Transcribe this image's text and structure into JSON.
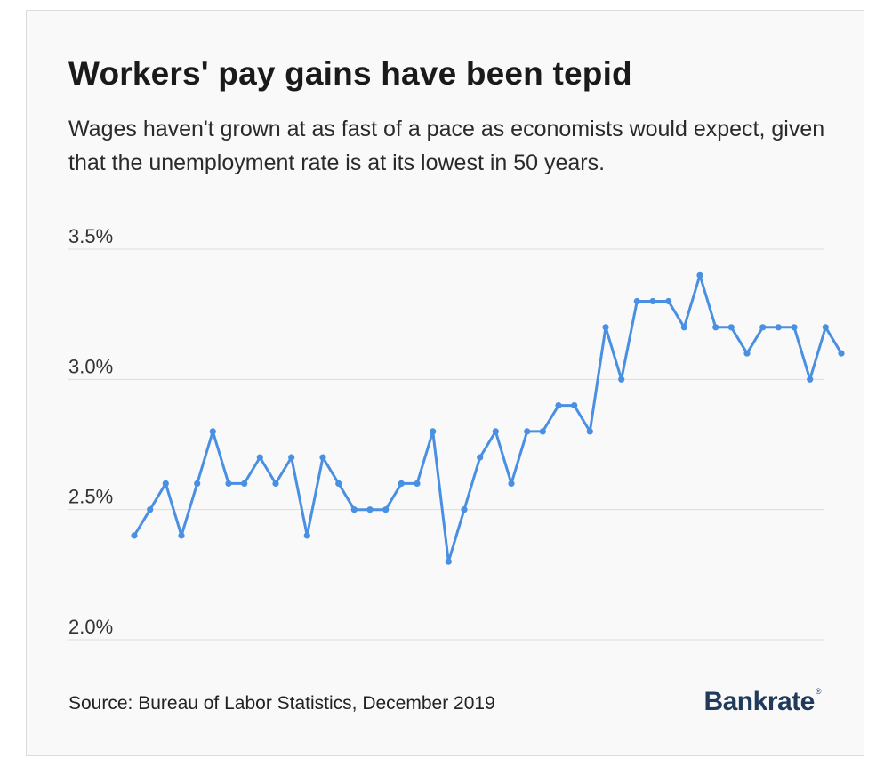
{
  "header": {
    "title": "Workers' pay gains have been tepid",
    "subtitle": "Wages haven't grown at as fast of a pace as economists would expect, given that the unemployment rate is at its lowest in 50 years."
  },
  "footer": {
    "source": "Source: Bureau of Labor Statistics, December 2019",
    "logo": "Bankrate"
  },
  "colors": {
    "line": "#4a90e2",
    "grid": "#dddddd",
    "logo": "#1f3a5a"
  },
  "chart_data": {
    "type": "line",
    "title": "Workers' pay gains have been tepid",
    "xlabel": "",
    "ylabel": "",
    "ylim": [
      2.0,
      3.5
    ],
    "yticks": [
      {
        "value": 3.5,
        "label": "3.5%"
      },
      {
        "value": 3.0,
        "label": "3.0%"
      },
      {
        "value": 2.5,
        "label": "2.5%"
      },
      {
        "value": 2.0,
        "label": "2.0%"
      }
    ],
    "grid": true,
    "series": [
      {
        "values": [
          2.4,
          2.5,
          2.6,
          2.4,
          2.6,
          2.8,
          2.6,
          2.6,
          2.7,
          2.6,
          2.7,
          2.4,
          2.7,
          2.6,
          2.5,
          2.5,
          2.5,
          2.6,
          2.6,
          2.8,
          2.3,
          2.5,
          2.7,
          2.8,
          2.6,
          2.8,
          2.8,
          2.9,
          2.9,
          2.8,
          3.2,
          3.0,
          3.3,
          3.3,
          3.3,
          3.2,
          3.4,
          3.2,
          3.2,
          3.1,
          3.2,
          3.2,
          3.2,
          3.0,
          3.2,
          3.1
        ]
      }
    ]
  }
}
